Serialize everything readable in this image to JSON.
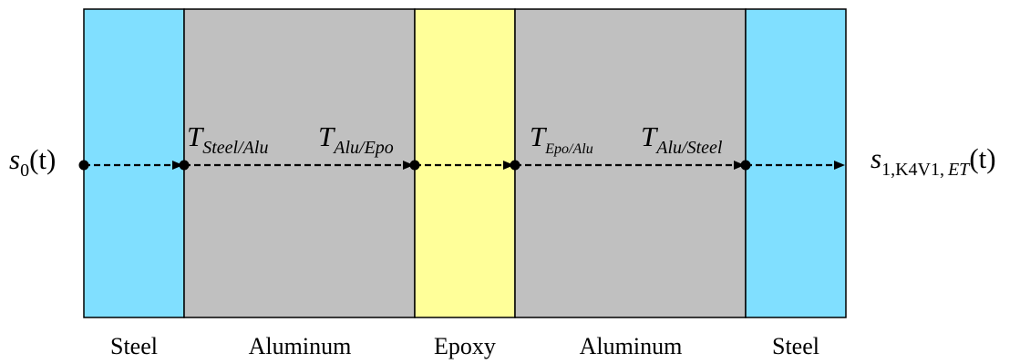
{
  "layers": [
    {
      "label": "Steel",
      "color": "#80DFFF"
    },
    {
      "label": "Aluminum",
      "color": "#C0C0C0"
    },
    {
      "label": "Epoxy",
      "color": "#FFFF99"
    },
    {
      "label": "Aluminum",
      "color": "#C0C0C0"
    },
    {
      "label": "Steel",
      "color": "#80DFFF"
    }
  ],
  "input_signal": {
    "symbol": "s",
    "subscript": "0",
    "arg": "(t)"
  },
  "output_signal": {
    "symbol": "s",
    "subscript_upright": "1,K4V1,",
    "subscript_italic": "ET",
    "arg": "(t)"
  },
  "coefficients": [
    {
      "symbol": "T",
      "subscript": "Steel/Alu"
    },
    {
      "symbol": "T",
      "subscript": "Alu/Epo"
    },
    {
      "symbol": "T",
      "subscript": "Epo/Alu"
    },
    {
      "symbol": "T",
      "subscript": "Alu/Steel"
    }
  ]
}
